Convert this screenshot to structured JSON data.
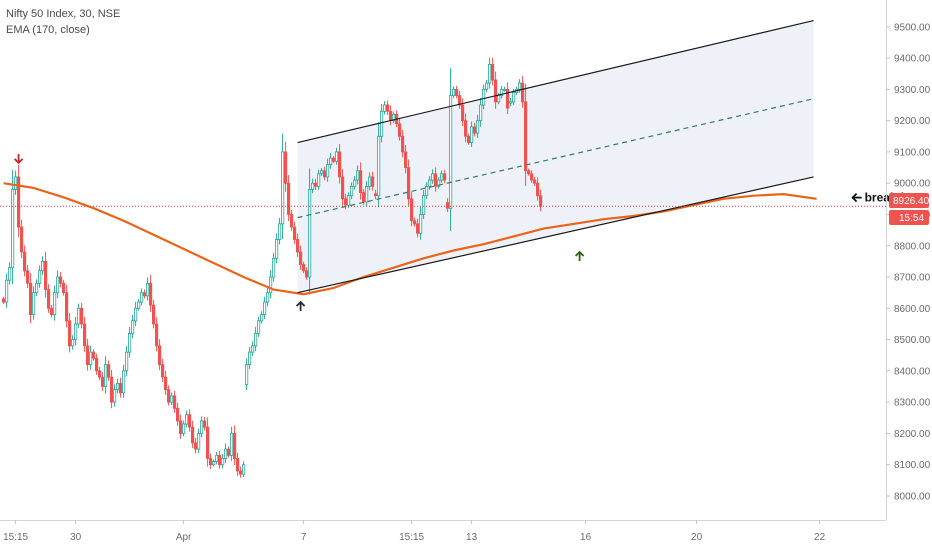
{
  "legend": {
    "symbol_line": "Nifty 50 Index, 30, NSE",
    "indicator_line": "EMA (170, close)"
  },
  "price_tags": {
    "last_price": "8926.40",
    "countdown": "15:54"
  },
  "annotations": {
    "breakdown_label": "breakdown"
  },
  "colors": {
    "up": "#26a69a",
    "down": "#ef5350",
    "ema": "#e8651a",
    "channel": "#1a1a1a",
    "midline": "#2e7d6e",
    "channel_fill": "#eef2f8",
    "price_line": "#e53935",
    "arrow_red": "#c62828",
    "arrow_dark": "#263238",
    "arrow_green": "#2e5e1a"
  },
  "chart_data": {
    "type": "candlestick",
    "title": "Nifty 50 Index, 30, NSE",
    "indicator": "EMA (170, close)",
    "ylim": [
      7880,
      9560
    ],
    "yticks": [
      8000,
      8100,
      8200,
      8300,
      8400,
      8500,
      8600,
      8700,
      8800,
      8900,
      9000,
      9100,
      9200,
      9300,
      9400,
      9500
    ],
    "ytick_labels": [
      "8000.00",
      "8100.00",
      "8200.00",
      "8300.00",
      "8400.00",
      "8500.00",
      "8600.00",
      "8700.00",
      "8800.00",
      "8900.00",
      "9000.00",
      "9100.00",
      "9200.00",
      "9300.00",
      "9400.00",
      "9500.00"
    ],
    "xticks": [
      {
        "index": 4,
        "label": "15:15"
      },
      {
        "index": 24,
        "label": "30"
      },
      {
        "index": 60,
        "label": "Apr"
      },
      {
        "index": 100,
        "label": "7"
      },
      {
        "index": 136,
        "label": "15:15"
      },
      {
        "index": 156,
        "label": "13"
      },
      {
        "index": 194,
        "label": "16"
      },
      {
        "index": 231,
        "label": "20"
      },
      {
        "index": 272,
        "label": "22"
      }
    ],
    "closes": [
      8620,
      8690,
      8730,
      8980,
      9020,
      8860,
      8780,
      8720,
      8680,
      8580,
      8650,
      8680,
      8720,
      8750,
      8660,
      8600,
      8580,
      8650,
      8700,
      8680,
      8650,
      8560,
      8480,
      8500,
      8550,
      8600,
      8550,
      8480,
      8420,
      8460,
      8440,
      8400,
      8380,
      8350,
      8420,
      8380,
      8300,
      8340,
      8360,
      8330,
      8400,
      8460,
      8520,
      8560,
      8600,
      8620,
      8650,
      8640,
      8680,
      8610,
      8550,
      8480,
      8420,
      8380,
      8340,
      8300,
      8320,
      8280,
      8240,
      8200,
      8230,
      8260,
      8220,
      8170,
      8150,
      8200,
      8240,
      8220,
      8120,
      8100,
      8110,
      8130,
      8100,
      8120,
      8150,
      8130,
      8200,
      8120,
      8080,
      8070,
      8100,
      8420,
      8460,
      8480,
      8520,
      8560,
      8580,
      8620,
      8650,
      8700,
      8760,
      8820,
      8870,
      9100,
      9000,
      8900,
      8860,
      8820,
      8780,
      8740,
      8720,
      8700,
      8980,
      9000,
      8990,
      9030,
      9040,
      9020,
      9060,
      9080,
      9070,
      9100,
      9020,
      8950,
      8930,
      8960,
      8990,
      9010,
      9040,
      8970,
      8940,
      8990,
      9020,
      8990,
      8960,
      9150,
      9230,
      9250,
      9230,
      9200,
      9220,
      9190,
      9150,
      9100,
      9050,
      8950,
      8880,
      8870,
      8840,
      8900,
      8960,
      8990,
      9010,
      9030,
      8990,
      9010,
      9030,
      9010,
      8920,
      9280,
      9300,
      9280,
      9250,
      9200,
      9150,
      9130,
      9180,
      9160,
      9200,
      9250,
      9300,
      9320,
      9380,
      9330,
      9260,
      9280,
      9300,
      9300,
      9240,
      9260,
      9290,
      9300,
      9320,
      9260,
      9040,
      9030,
      9010,
      9000,
      8960,
      8926
    ],
    "gaps_after": [
      80,
      123,
      147,
      168
    ],
    "ema": [
      [
        0,
        9000
      ],
      [
        10,
        8985
      ],
      [
        20,
        8955
      ],
      [
        30,
        8920
      ],
      [
        40,
        8880
      ],
      [
        50,
        8835
      ],
      [
        60,
        8790
      ],
      [
        70,
        8745
      ],
      [
        80,
        8700
      ],
      [
        90,
        8660
      ],
      [
        100,
        8645
      ],
      [
        110,
        8665
      ],
      [
        120,
        8700
      ],
      [
        130,
        8730
      ],
      [
        140,
        8760
      ],
      [
        150,
        8785
      ],
      [
        160,
        8805
      ],
      [
        170,
        8830
      ],
      [
        180,
        8855
      ],
      [
        190,
        8870
      ],
      [
        200,
        8885
      ],
      [
        210,
        8895
      ],
      [
        220,
        8910
      ],
      [
        230,
        8930
      ],
      [
        240,
        8950
      ],
      [
        250,
        8960
      ],
      [
        260,
        8965
      ],
      [
        271,
        8950
      ]
    ],
    "channel": {
      "upper": [
        [
          98,
          9130
        ],
        [
          270,
          9520
        ]
      ],
      "lower": [
        [
          98,
          8650
        ],
        [
          270,
          9020
        ]
      ],
      "mid": [
        [
          98,
          8890
        ],
        [
          270,
          9270
        ]
      ],
      "fill": [
        [
          98,
          9130
        ],
        [
          270,
          9520
        ],
        [
          270,
          9020
        ],
        [
          98,
          8650
        ]
      ]
    },
    "price_line": 8926.4,
    "markers": [
      {
        "name": "red-down-arrow",
        "index": 5,
        "value": 9065,
        "dir": "down",
        "color": "#c62828"
      },
      {
        "name": "dark-up-arrow",
        "index": 99,
        "value": 8620,
        "dir": "up",
        "color": "#263238"
      },
      {
        "name": "green-up-arrow",
        "index": 192,
        "value": 8780,
        "dir": "up",
        "color": "#2e5e1a"
      },
      {
        "name": "breakdown-arrow",
        "index": 283,
        "value": 8954,
        "dir": "left",
        "color": "#111111",
        "label": "breakdown"
      }
    ]
  }
}
